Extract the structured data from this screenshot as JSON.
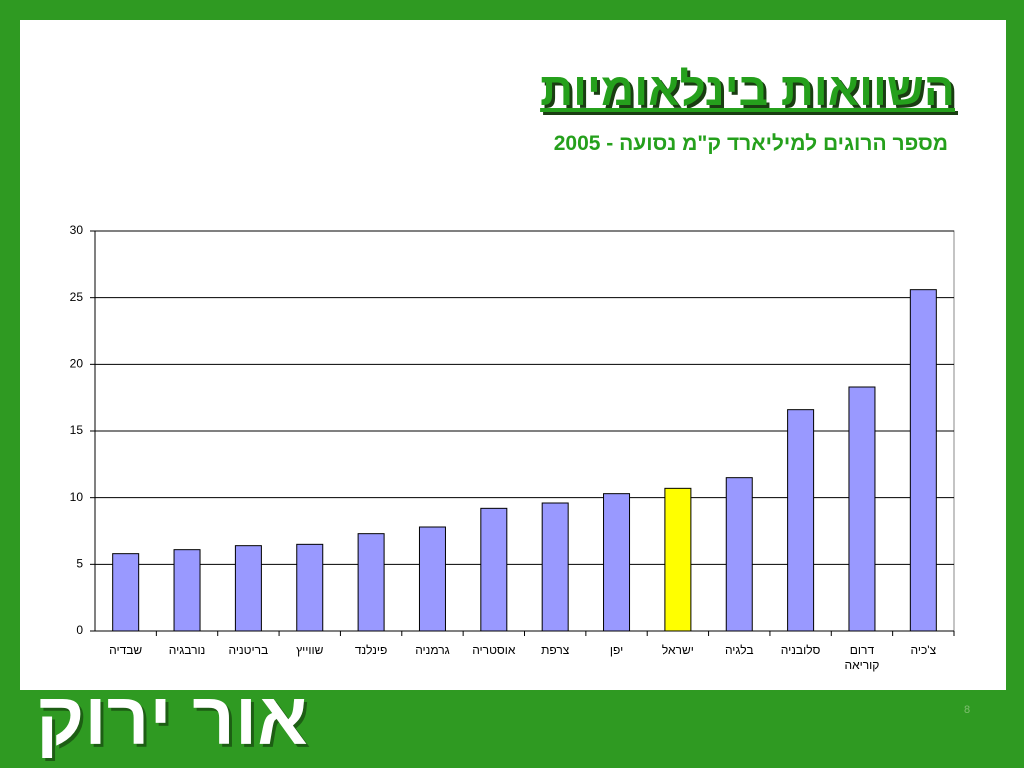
{
  "chart_data": {
    "type": "bar",
    "title": "השוואות בינלאומיות",
    "subtitle": "מספר הרוגים למיליארד ק\"מ נסועה - 2005",
    "categories": [
      "שבדיה",
      "נורבגיה",
      "בריטניה",
      "שווייץ",
      "פינלנד",
      "גרמניה",
      "אוסטריה",
      "צרפת",
      "יפן",
      "ישראל",
      "בלגיה",
      "סלובניה",
      "דרום קוריאה",
      "צ'כיה"
    ],
    "values": [
      5.8,
      6.1,
      6.4,
      6.5,
      7.3,
      7.8,
      9.2,
      9.6,
      10.3,
      10.7,
      11.5,
      16.6,
      18.3,
      25.6
    ],
    "colors": [
      "#9999ff",
      "#9999ff",
      "#9999ff",
      "#9999ff",
      "#9999ff",
      "#9999ff",
      "#9999ff",
      "#9999ff",
      "#9999ff",
      "#ffff00",
      "#9999ff",
      "#9999ff",
      "#9999ff",
      "#9999ff"
    ],
    "ylim": [
      0,
      30
    ],
    "yticks": [
      0,
      5,
      10,
      15,
      20,
      25,
      30
    ],
    "grid": true
  },
  "logo": "אור ירוק",
  "page_number": "8"
}
